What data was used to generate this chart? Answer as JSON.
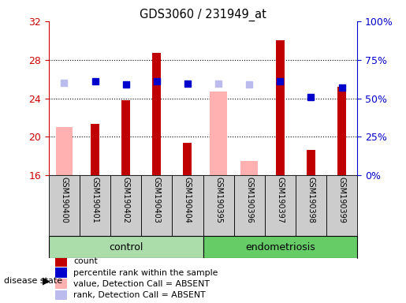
{
  "title": "GDS3060 / 231949_at",
  "samples": [
    "GSM190400",
    "GSM190401",
    "GSM190402",
    "GSM190403",
    "GSM190404",
    "GSM190395",
    "GSM190396",
    "GSM190397",
    "GSM190398",
    "GSM190399"
  ],
  "groups": [
    "control",
    "control",
    "control",
    "control",
    "control",
    "endometriosis",
    "endometriosis",
    "endometriosis",
    "endometriosis",
    "endometriosis"
  ],
  "ylim_left": [
    16,
    32
  ],
  "ylim_right": [
    0,
    100
  ],
  "yticks_left": [
    16,
    20,
    24,
    28,
    32
  ],
  "yticks_right": [
    0,
    25,
    50,
    75,
    100
  ],
  "red_bar": [
    null,
    21.3,
    23.8,
    28.7,
    19.4,
    null,
    null,
    30.0,
    18.6,
    25.2
  ],
  "pink_bar": [
    21.0,
    null,
    null,
    null,
    null,
    24.7,
    17.5,
    null,
    null,
    null
  ],
  "blue_square": [
    null,
    25.8,
    25.4,
    25.8,
    25.5,
    null,
    null,
    25.8,
    24.1,
    25.1
  ],
  "lavender_square": [
    25.6,
    null,
    null,
    null,
    null,
    25.5,
    25.4,
    null,
    null,
    null
  ],
  "bar_width": 0.55,
  "red_bar_width": 0.28,
  "red_color": "#c00000",
  "pink_color": "#ffb0b0",
  "blue_color": "#0000cc",
  "lavender_color": "#bbbbee",
  "control_color": "#aaddaa",
  "endo_color": "#66cc66",
  "bg_sample_label": "#cccccc",
  "left_axis_color": "#cc0000",
  "right_axis_color": "#0000cc",
  "legend_items": [
    {
      "label": "count",
      "color": "#c00000"
    },
    {
      "label": "percentile rank within the sample",
      "color": "#0000cc"
    },
    {
      "label": "value, Detection Call = ABSENT",
      "color": "#ffb0b0"
    },
    {
      "label": "rank, Detection Call = ABSENT",
      "color": "#bbbbee"
    }
  ]
}
